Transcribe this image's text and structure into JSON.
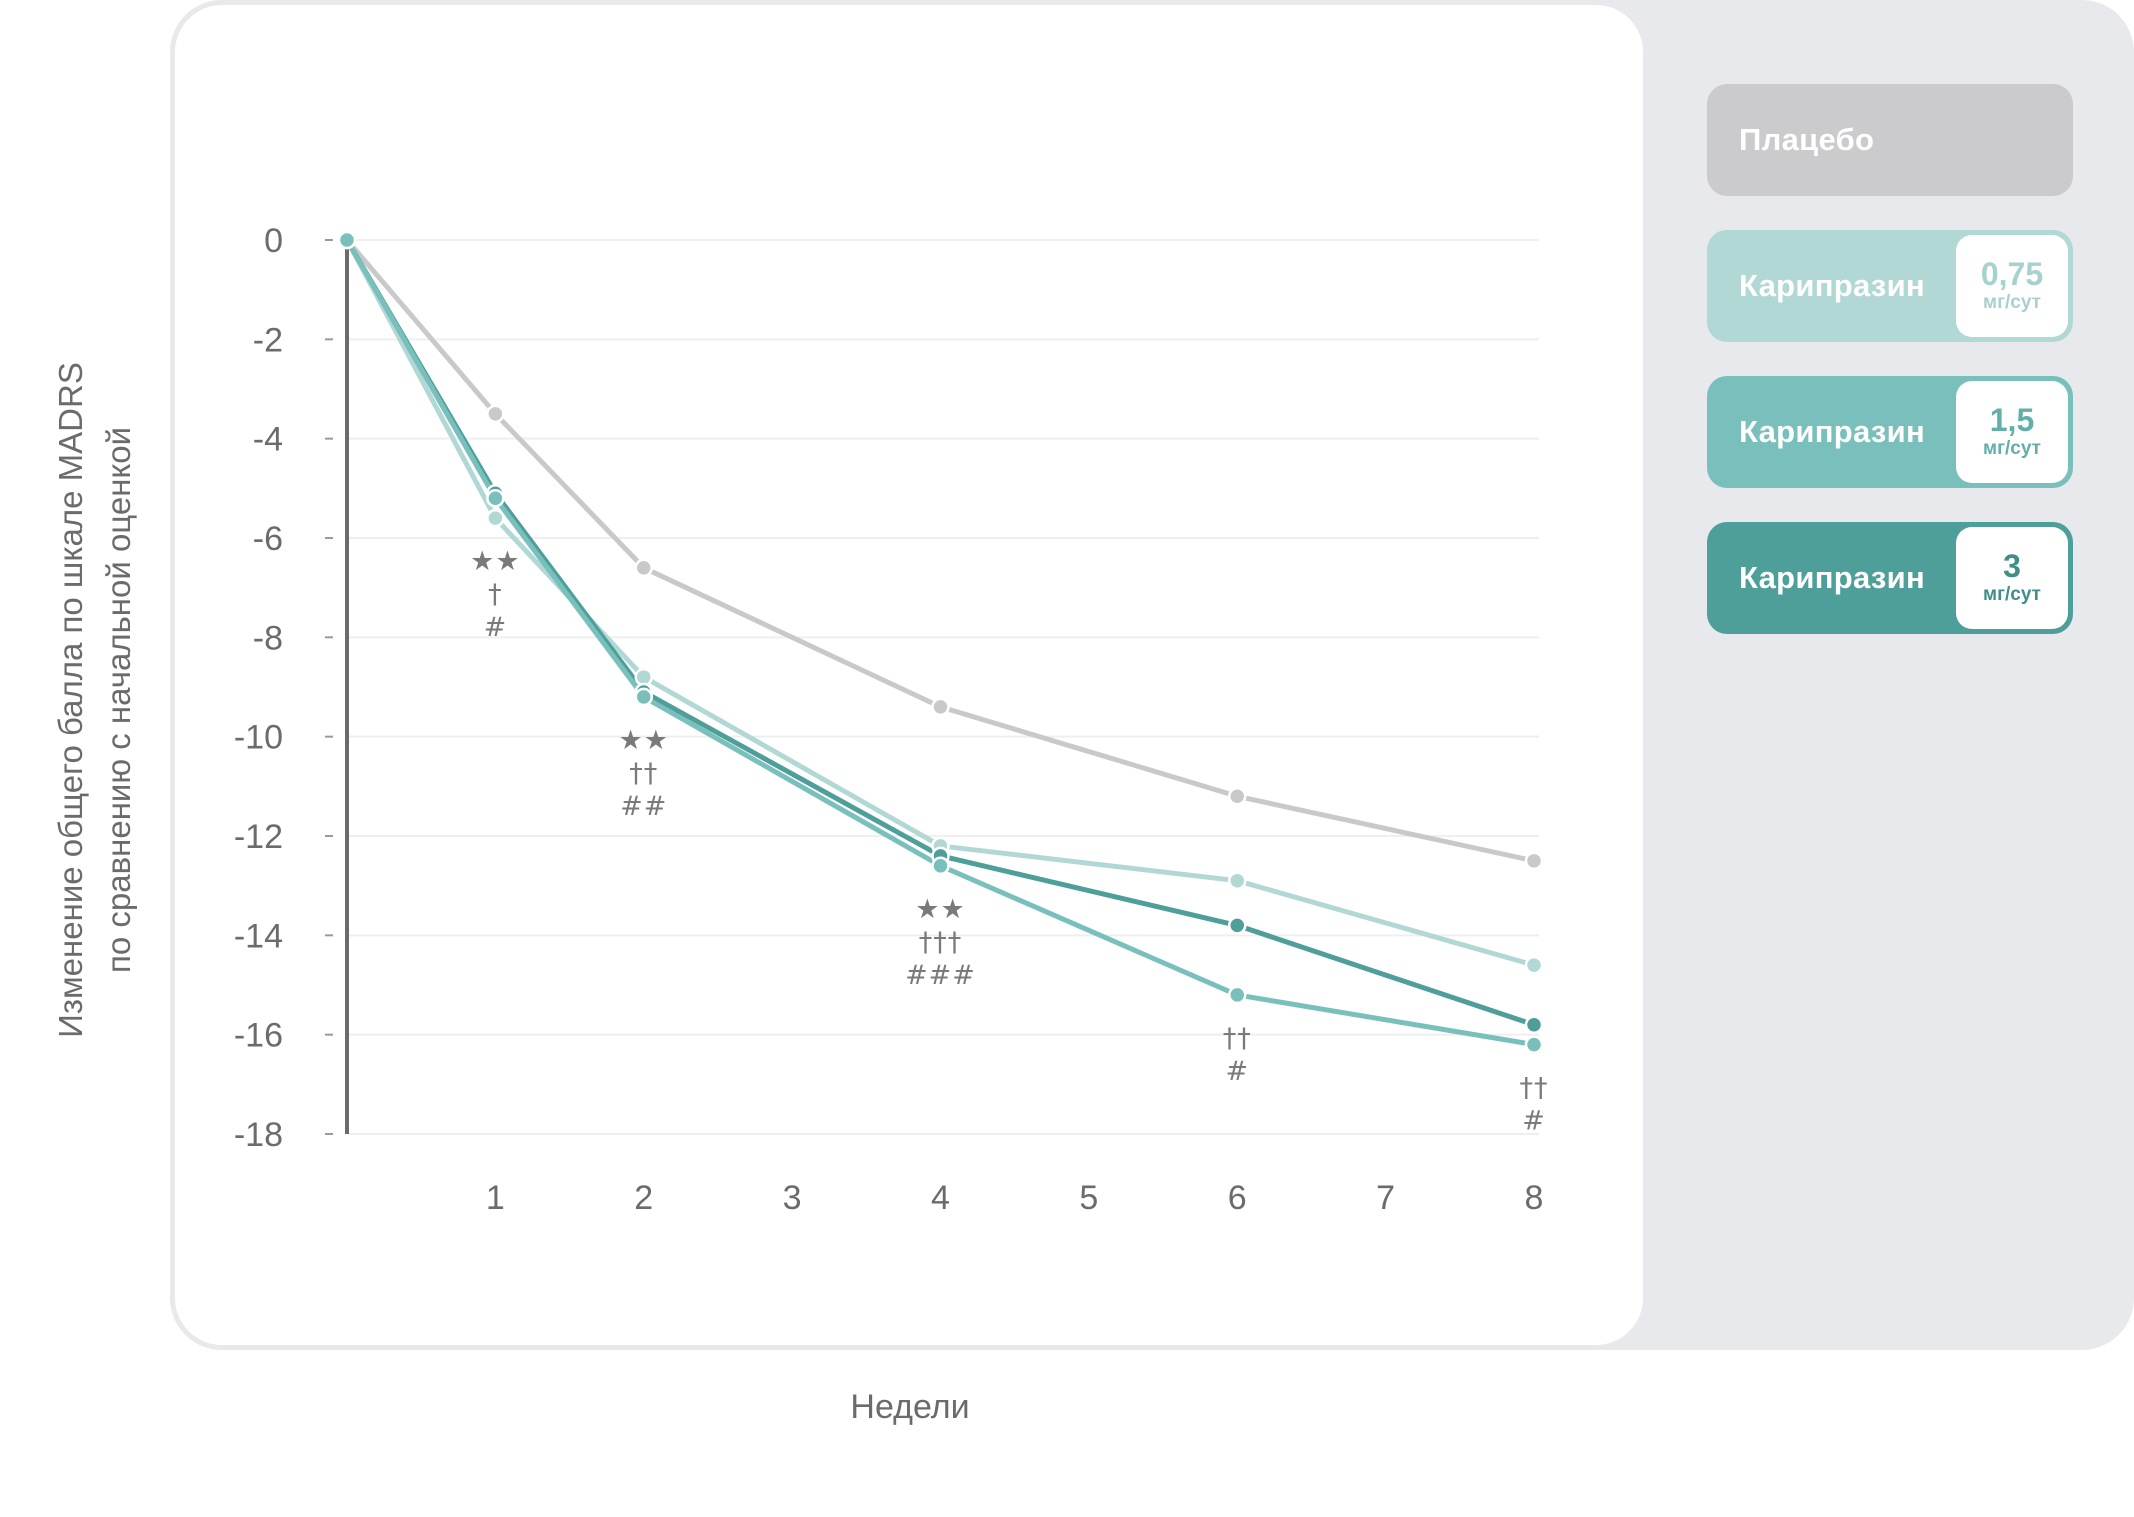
{
  "chart_data": {
    "type": "line",
    "xlabel": "Недели",
    "ylabel_lines": [
      "Изменение общего балла по шкале MADRS",
      "по сравнению с начальной оценкой"
    ],
    "x": [
      0,
      1,
      2,
      4,
      6,
      8
    ],
    "x_ticks": [
      "1",
      "2",
      "3",
      "4",
      "5",
      "6",
      "7",
      "8"
    ],
    "y_ticks": [
      "0",
      "-2",
      "-4",
      "-6",
      "-8",
      "-10",
      "-12",
      "-14",
      "-16",
      "-18"
    ],
    "xlim": [
      0,
      8
    ],
    "ylim": [
      -18,
      0
    ],
    "grid": "horizontal",
    "legend_position": "right",
    "series": [
      {
        "name": "Плацебо",
        "color": "#c9c9cb",
        "values": [
          0,
          -3.5,
          -6.6,
          -9.4,
          -11.2,
          -12.5
        ]
      },
      {
        "name": "Карипразин 0,75 мг/сут",
        "color": "#b1d8d5",
        "values": [
          0,
          -5.6,
          -8.8,
          -12.2,
          -12.9,
          -14.6
        ]
      },
      {
        "name": "Карипразин 3 мг/сут",
        "color": "#4e9e99",
        "values": [
          0,
          -5.1,
          -9.1,
          -12.4,
          -13.8,
          -15.8
        ]
      },
      {
        "name": "Карипразин 1,5 мг/сут",
        "color": "#79c0bc",
        "values": [
          0,
          -5.2,
          -9.2,
          -12.6,
          -15.2,
          -16.2
        ]
      }
    ],
    "annotations": [
      {
        "x": 1,
        "y": -5.6,
        "lines": [
          "★★",
          "†",
          "#"
        ]
      },
      {
        "x": 2,
        "y": -9.2,
        "lines": [
          "★★",
          "††",
          "##"
        ]
      },
      {
        "x": 4,
        "y": -12.6,
        "lines": [
          "★★",
          "†††",
          "###"
        ]
      },
      {
        "x": 6,
        "y": -15.2,
        "lines": [
          "††",
          "#"
        ]
      },
      {
        "x": 8,
        "y": -16.2,
        "lines": [
          "††",
          "#"
        ]
      }
    ]
  },
  "legend": [
    {
      "label": "Плацебо",
      "color": "#cbcbcd"
    },
    {
      "label": "Карипразин",
      "dose": "0,75",
      "unit": "мг/сут",
      "color": "#b1d8d5",
      "text_color": "#a6d1ce"
    },
    {
      "label": "Карипразин",
      "dose": "1,5",
      "unit": "мг/сут",
      "color": "#79c0bc",
      "text_color": "#62afaa"
    },
    {
      "label": "Карипразин",
      "dose": "3",
      "unit": "мг/сут",
      "color": "#4e9e99",
      "text_color": "#3f8e89"
    }
  ]
}
